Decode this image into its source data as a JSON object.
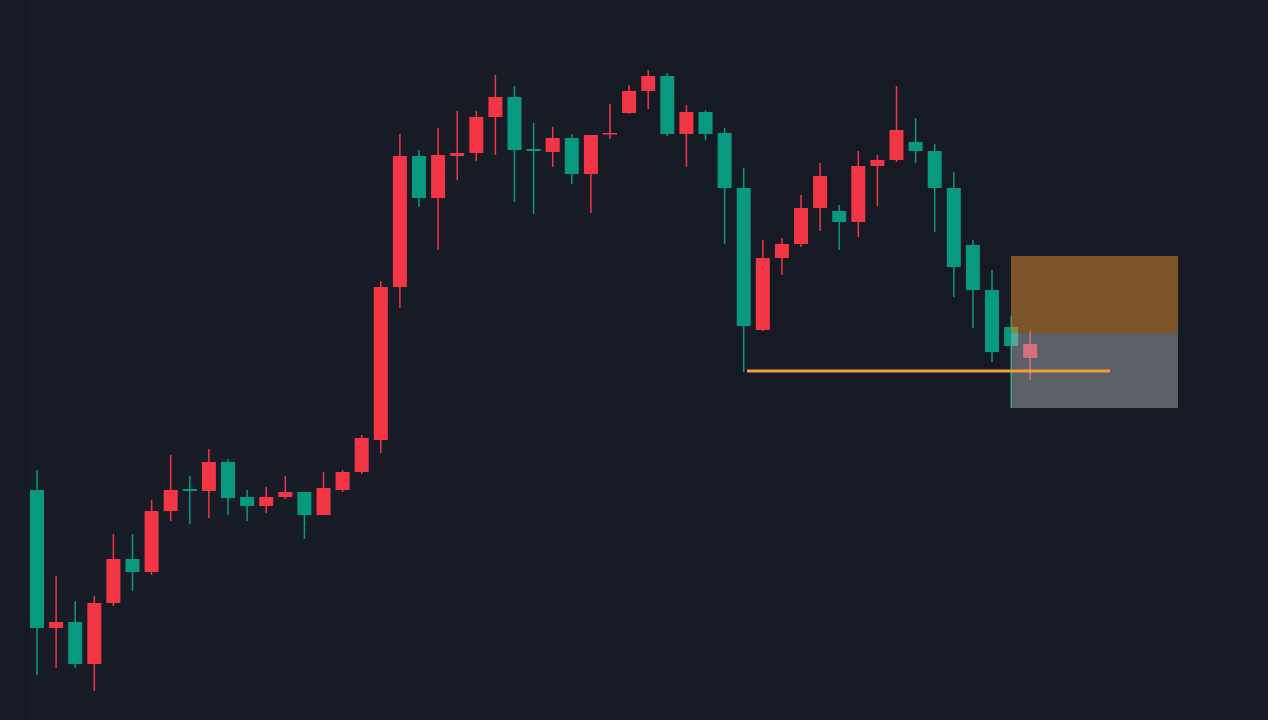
{
  "chart_data": {
    "type": "candlestick",
    "up_color": "#f23645",
    "down_color": "#089981",
    "ylim": [
      0,
      720
    ],
    "open": [
      230,
      92,
      98,
      56,
      117,
      161,
      148,
      209,
      231,
      229,
      258,
      223,
      214,
      223,
      228,
      205,
      230,
      248,
      280,
      433,
      564,
      522,
      564,
      567,
      603,
      623,
      571,
      568,
      582,
      546,
      586,
      607,
      629,
      644,
      586,
      608,
      587,
      532,
      390,
      462,
      476,
      512,
      509,
      498,
      554,
      560,
      578,
      569,
      532,
      475,
      430,
      393,
      362
    ],
    "high": [
      250,
      144,
      119,
      124,
      186,
      186,
      220,
      265,
      244,
      271,
      261,
      230,
      233,
      244,
      228,
      248,
      250,
      285,
      439,
      586,
      570,
      592,
      609,
      609,
      645,
      634,
      597,
      593,
      586,
      585,
      616,
      635,
      650,
      647,
      615,
      610,
      592,
      552,
      480,
      482,
      525,
      557,
      515,
      569,
      565,
      634,
      602,
      576,
      548,
      480,
      450,
      404,
      390
    ],
    "low": [
      45,
      52,
      52,
      29,
      114,
      129,
      145,
      199,
      196,
      202,
      205,
      199,
      207,
      221,
      181,
      205,
      228,
      246,
      267,
      412,
      513,
      470,
      540,
      559,
      565,
      518,
      506,
      553,
      536,
      507,
      581,
      606,
      611,
      584,
      553,
      580,
      476,
      348,
      389,
      445,
      473,
      489,
      470,
      483,
      514,
      558,
      557,
      488,
      423,
      392,
      358,
      312,
      340
    ],
    "close": [
      92,
      98,
      56,
      117,
      161,
      148,
      209,
      230,
      229,
      258,
      222,
      214,
      223,
      228,
      205,
      232,
      248,
      282,
      433,
      564,
      522,
      565,
      567,
      603,
      623,
      570,
      569,
      582,
      546,
      585,
      587,
      629,
      644,
      586,
      608,
      586,
      532,
      394,
      462,
      476,
      512,
      544,
      498,
      554,
      560,
      590,
      569,
      532,
      453,
      430,
      368,
      374,
      376
    ]
  }
}
